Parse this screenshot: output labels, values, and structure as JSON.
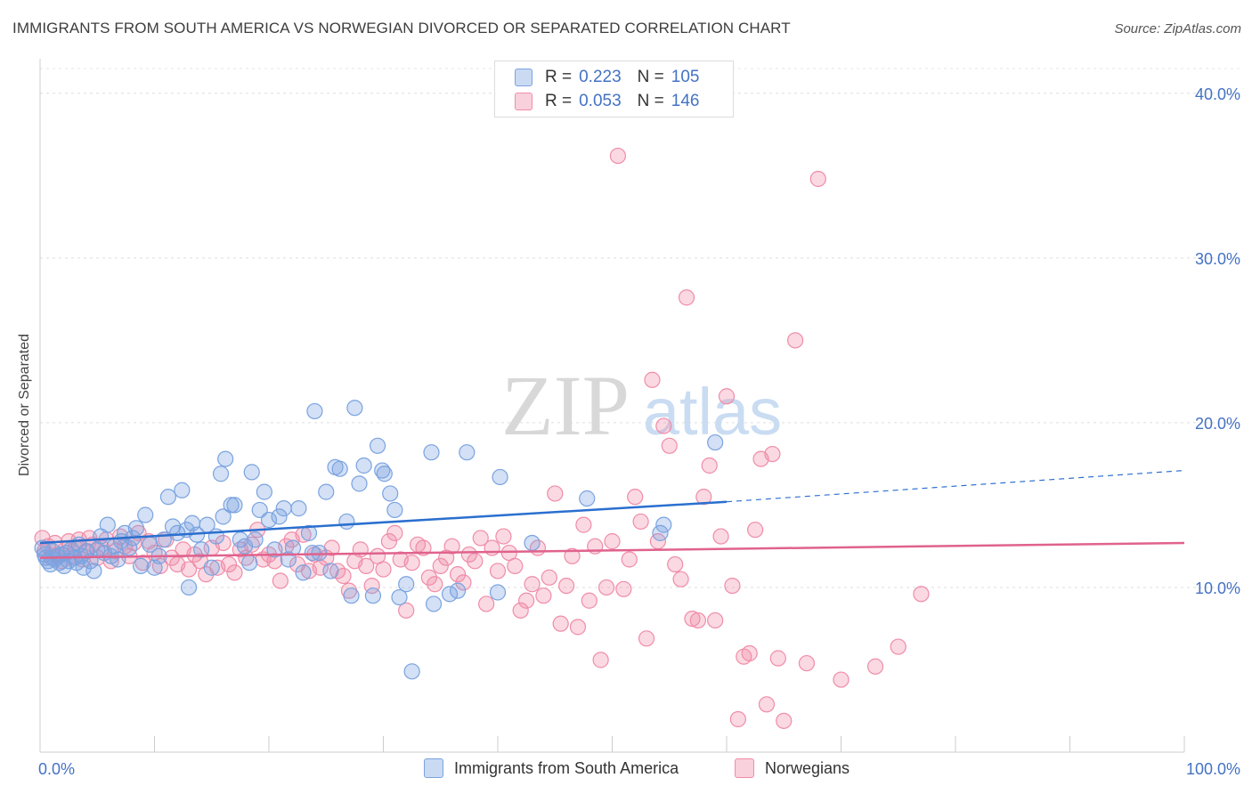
{
  "title": "IMMIGRANTS FROM SOUTH AMERICA VS NORWEGIAN DIVORCED OR SEPARATED CORRELATION CHART",
  "source": "Source: ZipAtlas.com",
  "watermark": {
    "zip": "ZIP",
    "atlas": "atlas"
  },
  "legend_top": {
    "rows": [
      {
        "r_label": "R =",
        "r_value": "0.223",
        "n_label": "N =",
        "n_value": "105",
        "color": "#7aa3e0"
      },
      {
        "r_label": "R =",
        "r_value": "0.053",
        "n_label": "N =",
        "n_value": "146",
        "color": "#f08ca8"
      }
    ]
  },
  "legend_bottom": {
    "items": [
      {
        "label": "Immigrants from South America",
        "color": "#7aa3e0"
      },
      {
        "label": "Norwegians",
        "color": "#f08ca8"
      }
    ]
  },
  "chart_data": {
    "type": "scatter",
    "title": "IMMIGRANTS FROM SOUTH AMERICA VS NORWEGIAN DIVORCED OR SEPARATED CORRELATION CHART",
    "xlabel": "",
    "ylabel": "Divorced or Separated",
    "x_tick_labels": [
      "0.0%",
      "100.0%"
    ],
    "y_tick_labels": [
      "10.0%",
      "20.0%",
      "30.0%",
      "40.0%"
    ],
    "y_ticks": [
      10,
      20,
      30,
      40
    ],
    "xlim": [
      0,
      100
    ],
    "ylim": [
      0,
      41.5
    ],
    "grid": true,
    "series": [
      {
        "name": "Immigrants from South America",
        "color": "#7aa3e0",
        "line_color": "#2a6fcf",
        "trend": {
          "x": [
            0,
            60
          ],
          "y": [
            12.7,
            15.2
          ],
          "dashed_to": [
            100,
            17.1
          ]
        },
        "points": [
          [
            0.2,
            12.4
          ],
          [
            0.4,
            12.0
          ],
          [
            0.5,
            11.8
          ],
          [
            0.7,
            11.6
          ],
          [
            0.9,
            11.4
          ],
          [
            1.1,
            12.2
          ],
          [
            1.3,
            11.7
          ],
          [
            1.5,
            11.9
          ],
          [
            1.7,
            11.5
          ],
          [
            1.9,
            12.0
          ],
          [
            2.1,
            11.3
          ],
          [
            2.3,
            12.1
          ],
          [
            2.5,
            11.6
          ],
          [
            2.7,
            12.3
          ],
          [
            3.0,
            11.8
          ],
          [
            3.2,
            11.5
          ],
          [
            3.4,
            12.6
          ],
          [
            3.6,
            11.9
          ],
          [
            3.8,
            11.2
          ],
          [
            4.1,
            12.2
          ],
          [
            4.4,
            11.6
          ],
          [
            4.7,
            11.0
          ],
          [
            5.0,
            12.3
          ],
          [
            5.3,
            13.1
          ],
          [
            5.6,
            12.1
          ],
          [
            5.9,
            13.8
          ],
          [
            6.2,
            11.9
          ],
          [
            6.5,
            12.5
          ],
          [
            6.8,
            11.7
          ],
          [
            7.1,
            12.8
          ],
          [
            7.4,
            13.3
          ],
          [
            7.8,
            12.4
          ],
          [
            8.1,
            13.0
          ],
          [
            8.4,
            13.6
          ],
          [
            8.8,
            11.3
          ],
          [
            9.2,
            14.4
          ],
          [
            9.6,
            12.6
          ],
          [
            10.0,
            11.2
          ],
          [
            10.4,
            11.9
          ],
          [
            10.8,
            12.9
          ],
          [
            11.2,
            15.5
          ],
          [
            11.6,
            13.7
          ],
          [
            12.0,
            13.3
          ],
          [
            12.4,
            15.9
          ],
          [
            12.8,
            13.5
          ],
          [
            13.0,
            10.0
          ],
          [
            13.3,
            13.9
          ],
          [
            13.7,
            13.2
          ],
          [
            14.1,
            12.3
          ],
          [
            14.6,
            13.8
          ],
          [
            15.0,
            11.2
          ],
          [
            15.4,
            13.1
          ],
          [
            15.8,
            16.9
          ],
          [
            16.0,
            14.3
          ],
          [
            16.2,
            17.8
          ],
          [
            16.7,
            15.0
          ],
          [
            17.0,
            15.0
          ],
          [
            17.5,
            12.9
          ],
          [
            17.9,
            12.5
          ],
          [
            18.3,
            11.5
          ],
          [
            18.5,
            17.0
          ],
          [
            18.8,
            12.9
          ],
          [
            19.2,
            14.7
          ],
          [
            19.6,
            15.8
          ],
          [
            20.0,
            14.1
          ],
          [
            20.5,
            12.3
          ],
          [
            20.9,
            14.3
          ],
          [
            21.3,
            14.8
          ],
          [
            21.7,
            11.7
          ],
          [
            22.1,
            12.4
          ],
          [
            22.6,
            14.8
          ],
          [
            23.0,
            10.9
          ],
          [
            23.5,
            13.3
          ],
          [
            23.8,
            12.1
          ],
          [
            24.0,
            20.7
          ],
          [
            24.4,
            12.1
          ],
          [
            25.0,
            15.8
          ],
          [
            25.4,
            11.0
          ],
          [
            25.8,
            17.3
          ],
          [
            26.2,
            17.2
          ],
          [
            26.8,
            14.0
          ],
          [
            27.2,
            9.5
          ],
          [
            27.5,
            20.9
          ],
          [
            27.9,
            16.3
          ],
          [
            28.3,
            17.4
          ],
          [
            29.1,
            9.5
          ],
          [
            29.5,
            18.6
          ],
          [
            29.9,
            17.1
          ],
          [
            30.1,
            16.9
          ],
          [
            30.6,
            15.7
          ],
          [
            31.0,
            14.7
          ],
          [
            31.4,
            9.4
          ],
          [
            32.0,
            10.2
          ],
          [
            32.5,
            4.9
          ],
          [
            34.4,
            9.0
          ],
          [
            34.2,
            18.2
          ],
          [
            35.8,
            9.6
          ],
          [
            36.5,
            9.8
          ],
          [
            37.3,
            18.2
          ],
          [
            40.0,
            9.7
          ],
          [
            40.2,
            16.7
          ],
          [
            43.0,
            12.7
          ],
          [
            47.8,
            15.4
          ],
          [
            54.2,
            13.3
          ],
          [
            54.5,
            13.8
          ],
          [
            59.0,
            18.8
          ]
        ]
      },
      {
        "name": "Norwegians",
        "color": "#f08ca8",
        "line_color": "#e0628d",
        "trend": {
          "x": [
            0,
            100
          ],
          "y": [
            11.8,
            12.7
          ]
        },
        "points": [
          [
            0.2,
            13.0
          ],
          [
            0.4,
            12.2
          ],
          [
            0.7,
            12.5
          ],
          [
            1.0,
            11.8
          ],
          [
            1.3,
            12.7
          ],
          [
            1.6,
            12.0
          ],
          [
            1.9,
            11.6
          ],
          [
            2.2,
            12.3
          ],
          [
            2.5,
            12.8
          ],
          [
            2.8,
            11.9
          ],
          [
            3.1,
            12.4
          ],
          [
            3.4,
            12.9
          ],
          [
            3.7,
            11.7
          ],
          [
            4.0,
            12.2
          ],
          [
            4.3,
            13.0
          ],
          [
            4.6,
            12.6
          ],
          [
            5.0,
            11.8
          ],
          [
            5.4,
            12.4
          ],
          [
            5.8,
            12.9
          ],
          [
            6.2,
            11.6
          ],
          [
            6.6,
            12.2
          ],
          [
            7.0,
            13.1
          ],
          [
            7.4,
            12.5
          ],
          [
            7.8,
            11.9
          ],
          [
            8.2,
            12.7
          ],
          [
            8.6,
            13.3
          ],
          [
            9.0,
            11.5
          ],
          [
            9.5,
            12.8
          ],
          [
            10.0,
            12.1
          ],
          [
            10.5,
            11.3
          ],
          [
            11.0,
            12.9
          ],
          [
            11.5,
            11.8
          ],
          [
            12.0,
            11.4
          ],
          [
            12.5,
            12.3
          ],
          [
            13.0,
            11.1
          ],
          [
            13.5,
            12.0
          ],
          [
            14.0,
            11.6
          ],
          [
            14.5,
            10.8
          ],
          [
            15.0,
            12.4
          ],
          [
            15.5,
            11.2
          ],
          [
            16.0,
            12.7
          ],
          [
            16.5,
            11.4
          ],
          [
            17.0,
            10.9
          ],
          [
            17.5,
            12.3
          ],
          [
            18.0,
            11.8
          ],
          [
            18.5,
            12.6
          ],
          [
            19.0,
            13.5
          ],
          [
            19.5,
            11.7
          ],
          [
            20.0,
            12.0
          ],
          [
            20.5,
            11.6
          ],
          [
            21.0,
            10.4
          ],
          [
            21.5,
            12.5
          ],
          [
            22.0,
            12.9
          ],
          [
            22.5,
            11.4
          ],
          [
            23.0,
            13.2
          ],
          [
            23.5,
            11.0
          ],
          [
            24.0,
            12.0
          ],
          [
            24.5,
            11.2
          ],
          [
            25.0,
            11.8
          ],
          [
            25.5,
            12.4
          ],
          [
            26.0,
            11.0
          ],
          [
            26.5,
            10.7
          ],
          [
            27.0,
            9.8
          ],
          [
            27.5,
            11.6
          ],
          [
            28.0,
            12.3
          ],
          [
            28.5,
            11.3
          ],
          [
            29.0,
            10.1
          ],
          [
            29.5,
            11.9
          ],
          [
            30.0,
            11.1
          ],
          [
            30.5,
            12.8
          ],
          [
            31.0,
            13.3
          ],
          [
            31.5,
            11.7
          ],
          [
            32.0,
            8.6
          ],
          [
            32.5,
            11.5
          ],
          [
            33.0,
            12.6
          ],
          [
            33.5,
            12.4
          ],
          [
            34.0,
            10.6
          ],
          [
            34.5,
            10.2
          ],
          [
            35.0,
            11.3
          ],
          [
            35.5,
            11.8
          ],
          [
            36.0,
            12.5
          ],
          [
            36.5,
            10.8
          ],
          [
            37.0,
            10.3
          ],
          [
            37.5,
            12.0
          ],
          [
            38.0,
            11.6
          ],
          [
            38.5,
            13.0
          ],
          [
            39.0,
            9.0
          ],
          [
            39.5,
            12.4
          ],
          [
            40.0,
            11.0
          ],
          [
            40.5,
            13.1
          ],
          [
            41.0,
            12.1
          ],
          [
            41.5,
            11.3
          ],
          [
            42.0,
            8.6
          ],
          [
            42.5,
            9.2
          ],
          [
            43.0,
            10.2
          ],
          [
            43.5,
            12.4
          ],
          [
            44.0,
            9.5
          ],
          [
            44.5,
            10.6
          ],
          [
            45.0,
            15.7
          ],
          [
            45.5,
            7.8
          ],
          [
            46.0,
            10.1
          ],
          [
            46.5,
            11.9
          ],
          [
            47.0,
            7.6
          ],
          [
            47.5,
            13.8
          ],
          [
            48.0,
            9.2
          ],
          [
            48.5,
            12.5
          ],
          [
            49.0,
            5.6
          ],
          [
            49.5,
            10.0
          ],
          [
            50.0,
            12.8
          ],
          [
            50.5,
            36.2
          ],
          [
            51.0,
            9.9
          ],
          [
            51.5,
            11.7
          ],
          [
            52.0,
            15.5
          ],
          [
            52.5,
            14.0
          ],
          [
            53.0,
            6.9
          ],
          [
            53.5,
            22.6
          ],
          [
            54.0,
            12.8
          ],
          [
            54.5,
            19.8
          ],
          [
            55.0,
            18.6
          ],
          [
            55.5,
            11.4
          ],
          [
            56.0,
            10.5
          ],
          [
            56.5,
            27.6
          ],
          [
            57.0,
            8.1
          ],
          [
            57.5,
            8.0
          ],
          [
            58.0,
            15.5
          ],
          [
            58.5,
            17.4
          ],
          [
            59.0,
            8.0
          ],
          [
            59.5,
            13.1
          ],
          [
            60.0,
            21.6
          ],
          [
            60.5,
            10.1
          ],
          [
            61.0,
            2.0
          ],
          [
            61.5,
            5.8
          ],
          [
            62.0,
            6.0
          ],
          [
            62.5,
            13.5
          ],
          [
            63.0,
            17.8
          ],
          [
            63.5,
            2.9
          ],
          [
            64.0,
            18.1
          ],
          [
            64.5,
            5.7
          ],
          [
            65.0,
            1.9
          ],
          [
            66.0,
            25.0
          ],
          [
            67.0,
            5.4
          ],
          [
            68.0,
            34.8
          ],
          [
            70.0,
            4.4
          ],
          [
            73.0,
            5.2
          ],
          [
            75.0,
            6.4
          ],
          [
            77.0,
            9.6
          ]
        ]
      }
    ]
  }
}
